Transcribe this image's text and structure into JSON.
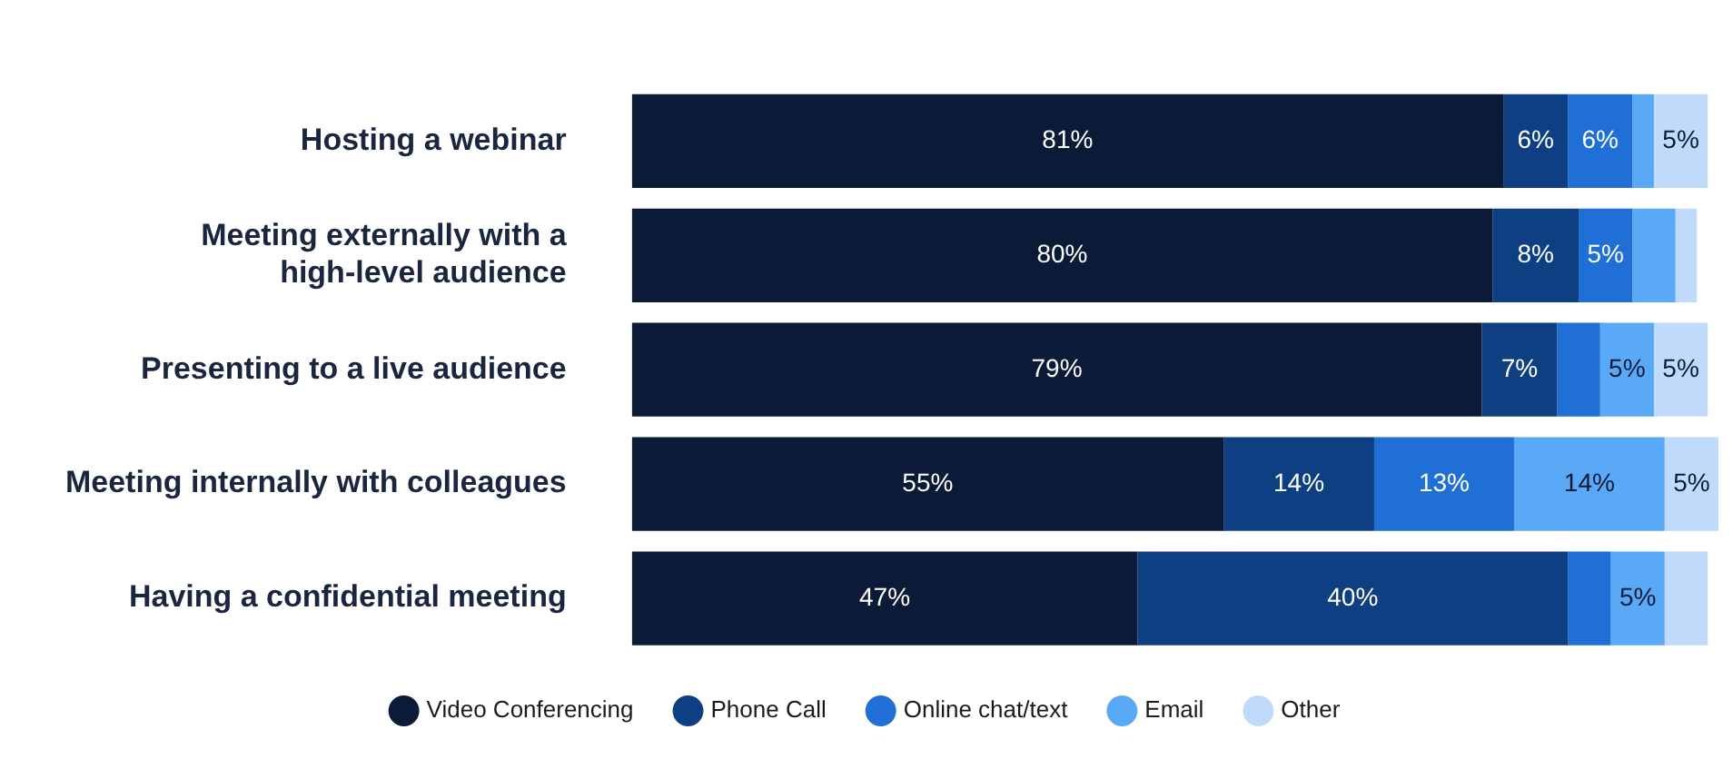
{
  "chart_data": {
    "type": "bar",
    "orientation": "horizontal",
    "stacked": true,
    "categories": [
      "Hosting a webinar",
      "Meeting externally with a high-level audience",
      "Presenting to a live audience",
      "Meeting internally with colleagues",
      "Having a confidential meeting"
    ],
    "series": [
      {
        "name": "Video Conferencing",
        "color": "#0b1a36",
        "values": [
          81,
          80,
          79,
          55,
          47
        ],
        "value_labels": [
          "81%",
          "80%",
          "79%",
          "55%",
          "47%"
        ]
      },
      {
        "name": "Phone Call",
        "color": "#0d3f82",
        "values": [
          6,
          8,
          7,
          14,
          40
        ],
        "value_labels": [
          "6%",
          "8%",
          "7%",
          "14%",
          "40%"
        ]
      },
      {
        "name": "Online chat/text",
        "color": "#1f6fd6",
        "values": [
          6,
          5,
          4,
          13,
          4
        ],
        "value_labels": [
          "6%",
          "5%",
          null,
          "13%",
          null
        ]
      },
      {
        "name": "Email",
        "color": "#5aa9f6",
        "values": [
          2,
          4,
          5,
          14,
          5
        ],
        "value_labels": [
          null,
          null,
          "5%",
          "14%",
          "5%"
        ]
      },
      {
        "name": "Other",
        "color": "#bfdafb",
        "values": [
          5,
          2,
          5,
          5,
          4
        ],
        "value_labels": [
          "5%",
          null,
          "5%",
          "5%",
          null
        ]
      }
    ],
    "xlim": [
      0,
      101
    ],
    "tick_labels": "y",
    "legend": "bottom"
  }
}
